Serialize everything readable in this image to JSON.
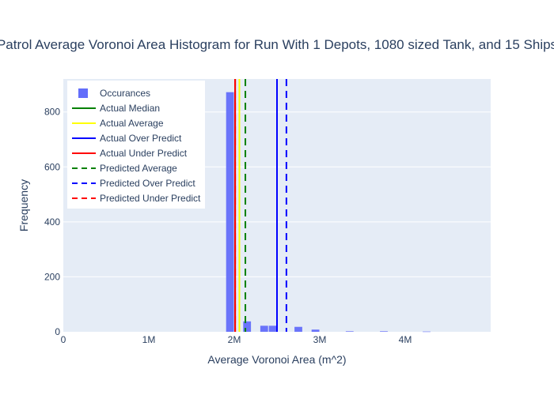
{
  "chart_data": {
    "type": "bar",
    "title": "Patrol Average Voronoi Area Histogram for Run With 1 Depots, 1080 sized Tank, and 15 Ships",
    "xlabel": "Average Voronoi Area (m^2)",
    "ylabel": "Frequency",
    "xlim": [
      0,
      5000000
    ],
    "ylim": [
      0,
      920
    ],
    "x_ticks": [
      0,
      1000000,
      2000000,
      3000000,
      4000000
    ],
    "x_tick_labels": [
      "0",
      "1M",
      "2M",
      "3M",
      "4M"
    ],
    "y_ticks": [
      0,
      200,
      400,
      600,
      800
    ],
    "y_tick_labels": [
      "0",
      "200",
      "400",
      "600",
      "800"
    ],
    "grid": true,
    "legend_position": "top-left",
    "bar_color": "#636efa",
    "bin_width": 100000,
    "series": [
      {
        "name": "Occurances",
        "kind": "histogram",
        "bins": [
          {
            "x0": 1900000,
            "x1": 2000000,
            "count": 872
          },
          {
            "x0": 2100000,
            "x1": 2200000,
            "count": 38
          },
          {
            "x0": 2300000,
            "x1": 2400000,
            "count": 22
          },
          {
            "x0": 2400000,
            "x1": 2500000,
            "count": 22
          },
          {
            "x0": 2700000,
            "x1": 2800000,
            "count": 18
          },
          {
            "x0": 2900000,
            "x1": 3000000,
            "count": 8
          },
          {
            "x0": 3300000,
            "x1": 3400000,
            "count": 2
          },
          {
            "x0": 3700000,
            "x1": 3800000,
            "count": 2
          },
          {
            "x0": 4200000,
            "x1": 4300000,
            "count": 1
          }
        ]
      },
      {
        "name": "Actual Median",
        "kind": "vline",
        "x": 2010000,
        "color": "#008000",
        "dash": "solid"
      },
      {
        "name": "Actual Average",
        "kind": "vline",
        "x": 2060000,
        "color": "#ffff00",
        "dash": "solid"
      },
      {
        "name": "Actual Over Predict",
        "kind": "vline",
        "x": 2500000,
        "color": "#0000ff",
        "dash": "solid"
      },
      {
        "name": "Actual Under Predict",
        "kind": "vline",
        "x": 2010000,
        "color": "#ff0000",
        "dash": "solid"
      },
      {
        "name": "Predicted Average",
        "kind": "vline",
        "x": 2130000,
        "color": "#008000",
        "dash": "dash"
      },
      {
        "name": "Predicted Over Predict",
        "kind": "vline",
        "x": 2610000,
        "color": "#0000ff",
        "dash": "dash"
      },
      {
        "name": "Predicted Under Predict",
        "kind": "vline",
        "x": 2010000,
        "color": "#ff0000",
        "dash": "dash"
      }
    ]
  }
}
